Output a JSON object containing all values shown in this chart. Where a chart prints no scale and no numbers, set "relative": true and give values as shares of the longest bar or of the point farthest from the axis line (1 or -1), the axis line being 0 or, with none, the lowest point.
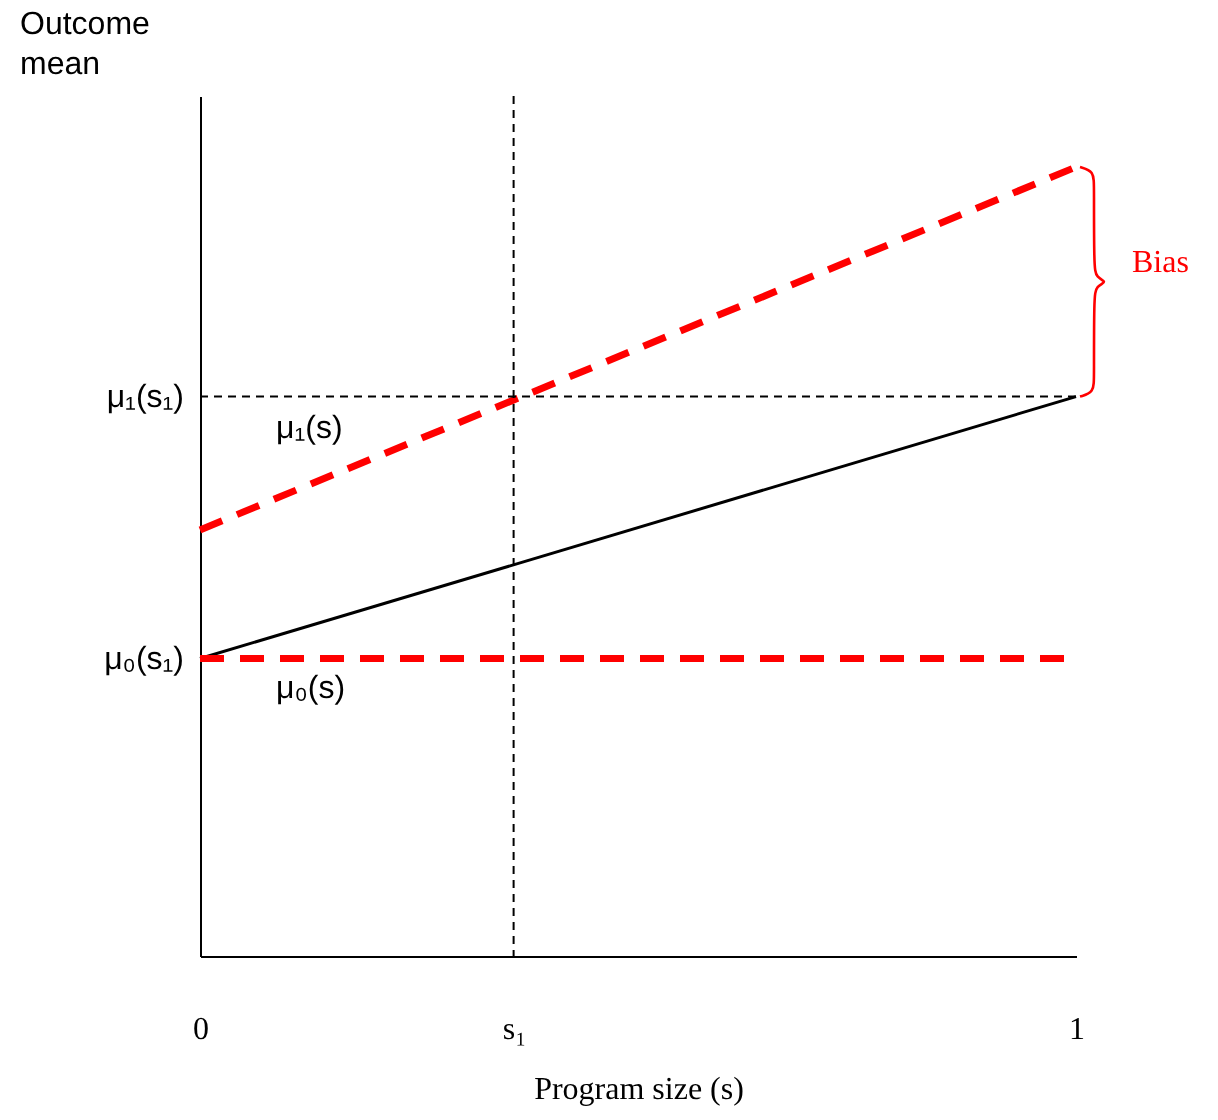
{
  "chart_data": {
    "type": "line",
    "relative": true,
    "ylabel": "Outcome mean",
    "xlabel": "Program size (s)",
    "xlim": [
      0,
      1
    ],
    "xticks": [
      0,
      {
        "value": 0.358,
        "label": "s₁"
      },
      1
    ],
    "grid": false,
    "marker": "none",
    "x": [
      0,
      1
    ],
    "series": [
      {
        "color": "#ff0000",
        "line_style": "dashed",
        "values": [
          0.54,
          1
        ]
      },
      {
        "color": "#000000",
        "line_style": "solid",
        "values": [
          0.377,
          0.709
        ]
      },
      {
        "color": "#ff0000",
        "line_style": "dashed",
        "values": [
          0.377,
          0.377
        ]
      }
    ],
    "ref_lines": [
      {
        "axis": "x",
        "value": 0.358,
        "line_style": "dashed",
        "color": "#000000"
      },
      {
        "axis": "y",
        "value": 0.709,
        "line_style": "dashed",
        "color": "#000000"
      }
    ],
    "annotations": [
      {
        "text": "μ₁(s₁)",
        "x": 0,
        "y": 0.709
      },
      {
        "text": "μ₀(s₁)",
        "x": 0,
        "y": 0.377
      },
      "μ₁(s)",
      "μ₀(s)",
      "Bias"
    ]
  }
}
